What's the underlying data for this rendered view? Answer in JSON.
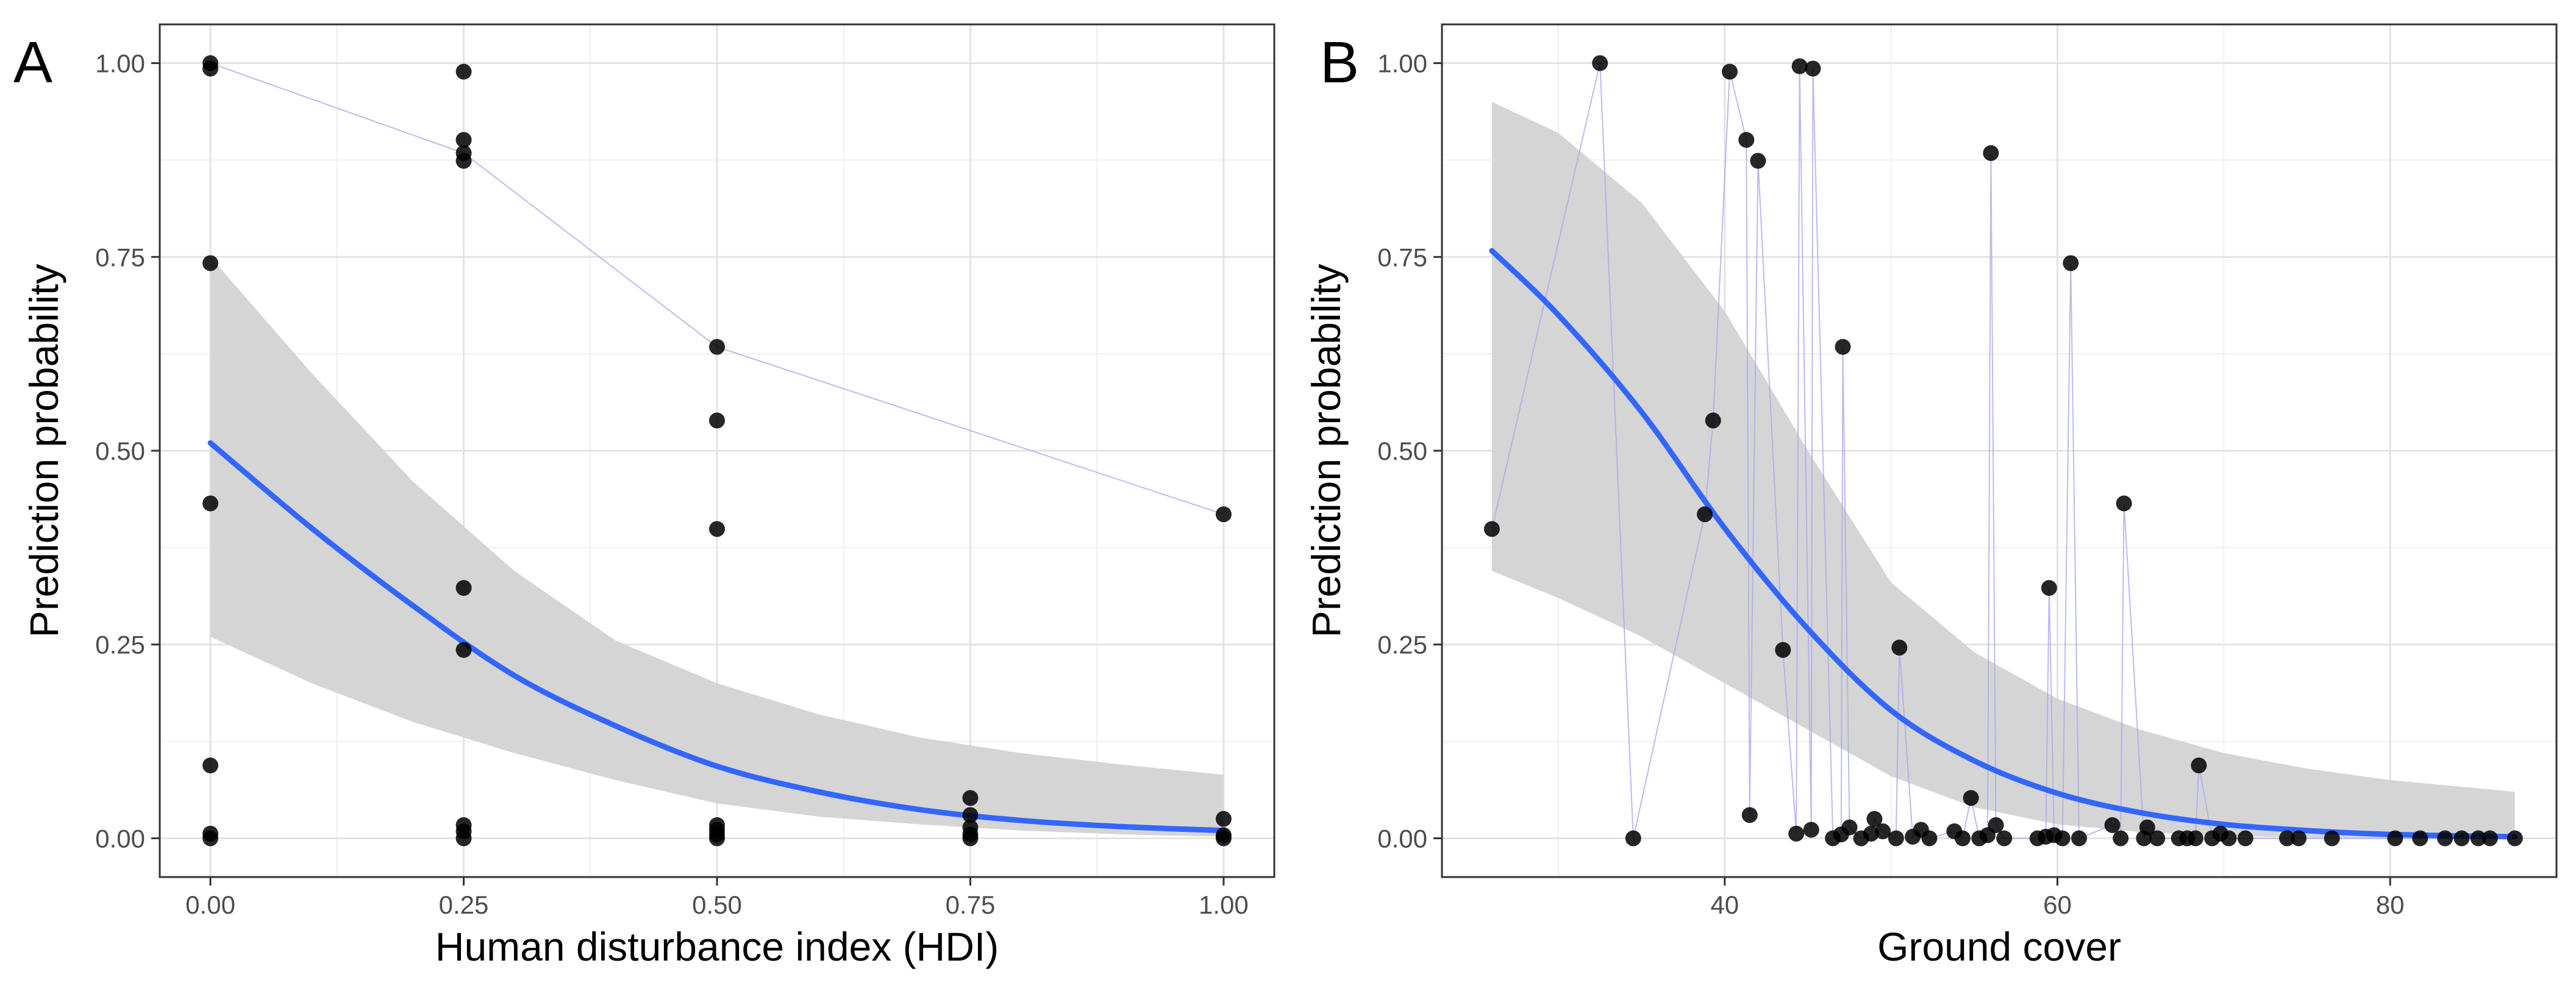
{
  "figure": {
    "panels": [
      "A",
      "B"
    ]
  },
  "chart_data": [
    {
      "type": "scatter",
      "panel_label": "A",
      "title": "",
      "xlabel": "Human disturbance index (HDI)",
      "ylabel": "Prediction probability",
      "xlim": [
        -0.05,
        1.05
      ],
      "ylim": [
        -0.05,
        1.05
      ],
      "x_ticks": [
        0,
        0.25,
        0.5,
        0.75,
        1.0
      ],
      "x_tick_labels": [
        "0.00",
        "0.25",
        "0.50",
        "0.75",
        "1.00"
      ],
      "y_ticks": [
        0,
        0.25,
        0.5,
        0.75,
        1.0
      ],
      "y_tick_labels": [
        "0.00",
        "0.25",
        "0.50",
        "0.75",
        "1.00"
      ],
      "grid": true,
      "points": [
        {
          "x": 0.0,
          "y": 1.0
        },
        {
          "x": 0.0,
          "y": 0.993
        },
        {
          "x": 0.0,
          "y": 0.742
        },
        {
          "x": 0.0,
          "y": 0.432
        },
        {
          "x": 0.0,
          "y": 0.094
        },
        {
          "x": 0.0,
          "y": 0.006
        },
        {
          "x": 0.0,
          "y": 0.0
        },
        {
          "x": 0.25,
          "y": 0.989
        },
        {
          "x": 0.25,
          "y": 0.901
        },
        {
          "x": 0.25,
          "y": 0.884
        },
        {
          "x": 0.25,
          "y": 0.874
        },
        {
          "x": 0.25,
          "y": 0.323
        },
        {
          "x": 0.25,
          "y": 0.243
        },
        {
          "x": 0.25,
          "y": 0.017
        },
        {
          "x": 0.25,
          "y": 0.009
        },
        {
          "x": 0.25,
          "y": 0.0
        },
        {
          "x": 0.5,
          "y": 0.634
        },
        {
          "x": 0.5,
          "y": 0.539
        },
        {
          "x": 0.5,
          "y": 0.399
        },
        {
          "x": 0.5,
          "y": 0.017
        },
        {
          "x": 0.5,
          "y": 0.011
        },
        {
          "x": 0.5,
          "y": 0.005
        },
        {
          "x": 0.5,
          "y": 0.0
        },
        {
          "x": 0.75,
          "y": 0.052
        },
        {
          "x": 0.75,
          "y": 0.03
        },
        {
          "x": 0.75,
          "y": 0.014
        },
        {
          "x": 0.75,
          "y": 0.005
        },
        {
          "x": 0.75,
          "y": 0.0
        },
        {
          "x": 1.0,
          "y": 0.418
        },
        {
          "x": 1.0,
          "y": 0.025
        },
        {
          "x": 1.0,
          "y": 0.004
        },
        {
          "x": 1.0,
          "y": 0.0
        }
      ],
      "connector_order": [
        1,
        0,
        9,
        16,
        28
      ],
      "fit": {
        "x": [
          0,
          0.1,
          0.2,
          0.3,
          0.4,
          0.5,
          0.6,
          0.7,
          0.8,
          0.9,
          1.0
        ],
        "y": [
          0.51,
          0.4,
          0.3,
          0.21,
          0.145,
          0.093,
          0.06,
          0.037,
          0.023,
          0.015,
          0.01
        ],
        "lower": [
          0.26,
          0.2,
          0.15,
          0.11,
          0.075,
          0.045,
          0.028,
          0.018,
          0.01,
          0.005,
          0.002
        ],
        "upper": [
          0.75,
          0.6,
          0.46,
          0.345,
          0.255,
          0.2,
          0.16,
          0.13,
          0.11,
          0.095,
          0.082
        ]
      },
      "colors": {
        "fit": "#3366ff",
        "ribbon": "#d3d3d3",
        "points": "#000000",
        "connector": "#aaaaee"
      }
    },
    {
      "type": "scatter",
      "panel_label": "B",
      "title": "",
      "xlabel": "Ground cover",
      "ylabel": "Prediction probability",
      "xlim": [
        23,
        90
      ],
      "ylim": [
        -0.05,
        1.05
      ],
      "x_ticks": [
        40,
        60,
        80
      ],
      "x_tick_labels": [
        "40",
        "60",
        "80"
      ],
      "y_ticks": [
        0,
        0.25,
        0.5,
        0.75,
        1.0
      ],
      "y_tick_labels": [
        "0.00",
        "0.25",
        "0.50",
        "0.75",
        "1.00"
      ],
      "grid": true,
      "points": [
        {
          "x": 26,
          "y": 0.399
        },
        {
          "x": 32.5,
          "y": 1.0
        },
        {
          "x": 34.5,
          "y": 0.0
        },
        {
          "x": 38.8,
          "y": 0.418
        },
        {
          "x": 39.3,
          "y": 0.539
        },
        {
          "x": 40.3,
          "y": 0.989
        },
        {
          "x": 41.3,
          "y": 0.901
        },
        {
          "x": 41.5,
          "y": 0.03
        },
        {
          "x": 42.0,
          "y": 0.874
        },
        {
          "x": 43.5,
          "y": 0.243
        },
        {
          "x": 44.3,
          "y": 0.006
        },
        {
          "x": 44.5,
          "y": 0.996
        },
        {
          "x": 45.2,
          "y": 0.011
        },
        {
          "x": 45.3,
          "y": 0.993
        },
        {
          "x": 46.5,
          "y": 0.0
        },
        {
          "x": 47.0,
          "y": 0.005
        },
        {
          "x": 47.1,
          "y": 0.634
        },
        {
          "x": 47.5,
          "y": 0.014
        },
        {
          "x": 48.2,
          "y": 0.0
        },
        {
          "x": 48.8,
          "y": 0.006
        },
        {
          "x": 49.0,
          "y": 0.025
        },
        {
          "x": 49.5,
          "y": 0.009
        },
        {
          "x": 50.3,
          "y": 0.0
        },
        {
          "x": 50.5,
          "y": 0.246
        },
        {
          "x": 51.3,
          "y": 0.002
        },
        {
          "x": 51.8,
          "y": 0.011
        },
        {
          "x": 52.3,
          "y": 0.0
        },
        {
          "x": 53.8,
          "y": 0.009
        },
        {
          "x": 54.3,
          "y": 0.0
        },
        {
          "x": 54.8,
          "y": 0.052
        },
        {
          "x": 55.3,
          "y": 0.0
        },
        {
          "x": 55.8,
          "y": 0.004
        },
        {
          "x": 56.0,
          "y": 0.884
        },
        {
          "x": 56.3,
          "y": 0.017
        },
        {
          "x": 56.8,
          "y": 0.0
        },
        {
          "x": 58.8,
          "y": 0.0
        },
        {
          "x": 59.3,
          "y": 0.002
        },
        {
          "x": 59.5,
          "y": 0.323
        },
        {
          "x": 59.8,
          "y": 0.004
        },
        {
          "x": 60.3,
          "y": 0.0
        },
        {
          "x": 60.8,
          "y": 0.742
        },
        {
          "x": 61.3,
          "y": 0.0
        },
        {
          "x": 63.3,
          "y": 0.017
        },
        {
          "x": 63.8,
          "y": 0.0
        },
        {
          "x": 64.0,
          "y": 0.432
        },
        {
          "x": 65.2,
          "y": 0.0
        },
        {
          "x": 65.4,
          "y": 0.014
        },
        {
          "x": 66.0,
          "y": 0.0
        },
        {
          "x": 67.3,
          "y": 0.0
        },
        {
          "x": 67.8,
          "y": 0.0
        },
        {
          "x": 68.3,
          "y": 0.0
        },
        {
          "x": 68.5,
          "y": 0.094
        },
        {
          "x": 69.3,
          "y": 0.0
        },
        {
          "x": 69.8,
          "y": 0.006
        },
        {
          "x": 70.3,
          "y": 0.0
        },
        {
          "x": 71.3,
          "y": 0.0
        },
        {
          "x": 73.8,
          "y": 0.0
        },
        {
          "x": 74.5,
          "y": 0.0
        },
        {
          "x": 76.5,
          "y": 0.0
        },
        {
          "x": 80.3,
          "y": 0.0
        },
        {
          "x": 81.8,
          "y": 0.0
        },
        {
          "x": 83.3,
          "y": 0.0
        },
        {
          "x": 84.3,
          "y": 0.0
        },
        {
          "x": 85.3,
          "y": 0.0
        },
        {
          "x": 86.0,
          "y": 0.0
        },
        {
          "x": 87.5,
          "y": 0.0
        }
      ],
      "connector_order": "all",
      "fit": {
        "x": [
          26,
          30,
          35,
          40,
          45,
          50,
          55,
          60,
          65,
          70,
          75,
          80,
          87.5
        ],
        "y": [
          0.758,
          0.675,
          0.55,
          0.4,
          0.27,
          0.165,
          0.1,
          0.058,
          0.033,
          0.018,
          0.01,
          0.005,
          0.002
        ],
        "lower": [
          0.345,
          0.31,
          0.26,
          0.2,
          0.14,
          0.08,
          0.04,
          0.018,
          0.008,
          0.003,
          0.001,
          0.0,
          0.0
        ],
        "upper": [
          0.95,
          0.91,
          0.82,
          0.68,
          0.5,
          0.33,
          0.24,
          0.18,
          0.14,
          0.11,
          0.09,
          0.075,
          0.06
        ]
      },
      "colors": {
        "fit": "#3366ff",
        "ribbon": "#d3d3d3",
        "points": "#000000",
        "connector": "#aaaaee"
      }
    }
  ]
}
